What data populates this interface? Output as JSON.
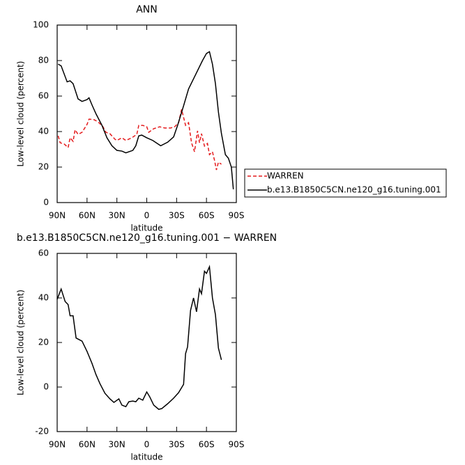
{
  "chart_data": [
    {
      "type": "line",
      "title": "ANN",
      "xlabel": "latitude",
      "ylabel": "Low-level cloud (percent)",
      "xlim": [
        90,
        -90
      ],
      "ylim": [
        0,
        100
      ],
      "xticks": [
        {
          "value": 90,
          "label": "90N"
        },
        {
          "value": 60,
          "label": "60N"
        },
        {
          "value": 30,
          "label": "30N"
        },
        0,
        {
          "value": -30,
          "label": "30S"
        },
        {
          "value": -60,
          "label": "60S"
        },
        {
          "value": -90,
          "label": "90S"
        }
      ],
      "yticks": [
        0,
        20,
        40,
        60,
        80,
        100
      ],
      "legend": "right",
      "series": [
        {
          "name": "WARREN",
          "color": "#e41a1c",
          "dash": true,
          "x": [
            89,
            87,
            83,
            79,
            77,
            74,
            72,
            69,
            65,
            60,
            58,
            53,
            49,
            44,
            41,
            37,
            32,
            30,
            25,
            21,
            15,
            10,
            8,
            4,
            0,
            -2,
            -7,
            -13,
            -18,
            -24,
            -28,
            -32,
            -35,
            -39,
            -42,
            -45,
            -48,
            -51,
            -53,
            -55,
            -58,
            -61,
            -63,
            -66,
            -68,
            -70,
            -72,
            -75
          ],
          "values": [
            37.6,
            33.7,
            33,
            31,
            36.5,
            34.5,
            41,
            38.4,
            39.6,
            44,
            47,
            46.7,
            45.5,
            42.7,
            39.6,
            38.8,
            35.7,
            35,
            36.5,
            35,
            36.5,
            38.4,
            43.5,
            43.5,
            42.7,
            39.6,
            41.6,
            42.7,
            42,
            42,
            42.7,
            45,
            52.5,
            43.5,
            45,
            33.7,
            28.6,
            40.4,
            33.7,
            38.8,
            31.8,
            33.3,
            27,
            28.6,
            24,
            18.4,
            22.7,
            21.6
          ]
        },
        {
          "name": "b.e13.B1850C5CN.ne120_g16.tuning.001",
          "color": "#000000",
          "dash": false,
          "x": [
            89,
            86,
            80,
            77,
            74,
            69,
            65,
            60,
            58,
            55,
            51,
            45,
            40,
            35,
            30,
            25,
            21,
            14,
            11,
            8,
            5,
            0,
            -6,
            -14,
            -21,
            -27,
            -31,
            -37,
            -42,
            -49,
            -56,
            -60,
            -63,
            -66,
            -69,
            -72,
            -75,
            -79,
            -82,
            -85,
            -87
          ],
          "values": [
            78,
            77,
            68,
            68.6,
            67,
            58.4,
            57,
            58,
            59,
            55,
            50,
            43.5,
            36.5,
            32,
            29.4,
            29,
            28,
            29.4,
            32,
            37.6,
            38,
            36.5,
            35,
            32,
            34,
            37,
            43.5,
            54.5,
            64,
            72,
            80,
            84,
            85,
            78,
            67,
            51,
            39,
            27,
            25,
            20,
            7.5
          ]
        }
      ]
    },
    {
      "type": "line",
      "title": "b.e13.B1850C5CN.ne120_g16.tuning.001 − WARREN",
      "xlabel": "latitude",
      "ylabel": "Low-level cloud (percent)",
      "xlim": [
        90,
        -90
      ],
      "ylim": [
        -20,
        60
      ],
      "xticks": [
        {
          "value": 90,
          "label": "90N"
        },
        {
          "value": 60,
          "label": "60N"
        },
        {
          "value": 30,
          "label": "30N"
        },
        0,
        {
          "value": -30,
          "label": "30S"
        },
        {
          "value": -60,
          "label": "60S"
        },
        {
          "value": -90,
          "label": "90S"
        }
      ],
      "yticks": [
        -20,
        0,
        20,
        40,
        60
      ],
      "series": [
        {
          "color": "#000000",
          "dash": false,
          "x": [
            90,
            86,
            82,
            79,
            77,
            74,
            71,
            65,
            60,
            55,
            51,
            47,
            42,
            37,
            33,
            28,
            25,
            21,
            18,
            14,
            11,
            8,
            4,
            0,
            -3,
            -7,
            -12,
            -15,
            -21,
            -27,
            -32,
            -37,
            -39,
            -41,
            -44,
            -47,
            -50,
            -53,
            -55,
            -58,
            -60,
            -63,
            -66,
            -69,
            -72,
            -75
          ],
          "values": [
            39.4,
            44,
            38.4,
            37,
            32,
            32,
            22,
            20.6,
            16,
            10.6,
            5.6,
            1.5,
            -2.8,
            -5.3,
            -6.9,
            -5.3,
            -8.1,
            -8.8,
            -6.6,
            -6.3,
            -6.6,
            -5,
            -5.9,
            -2.2,
            -4.4,
            -8.1,
            -10,
            -9.7,
            -7.5,
            -5,
            -2.5,
            1.2,
            15,
            18,
            34.4,
            40,
            33.8,
            44,
            41.9,
            52,
            51,
            54,
            40,
            32.5,
            17.5,
            12.2
          ]
        }
      ]
    }
  ]
}
